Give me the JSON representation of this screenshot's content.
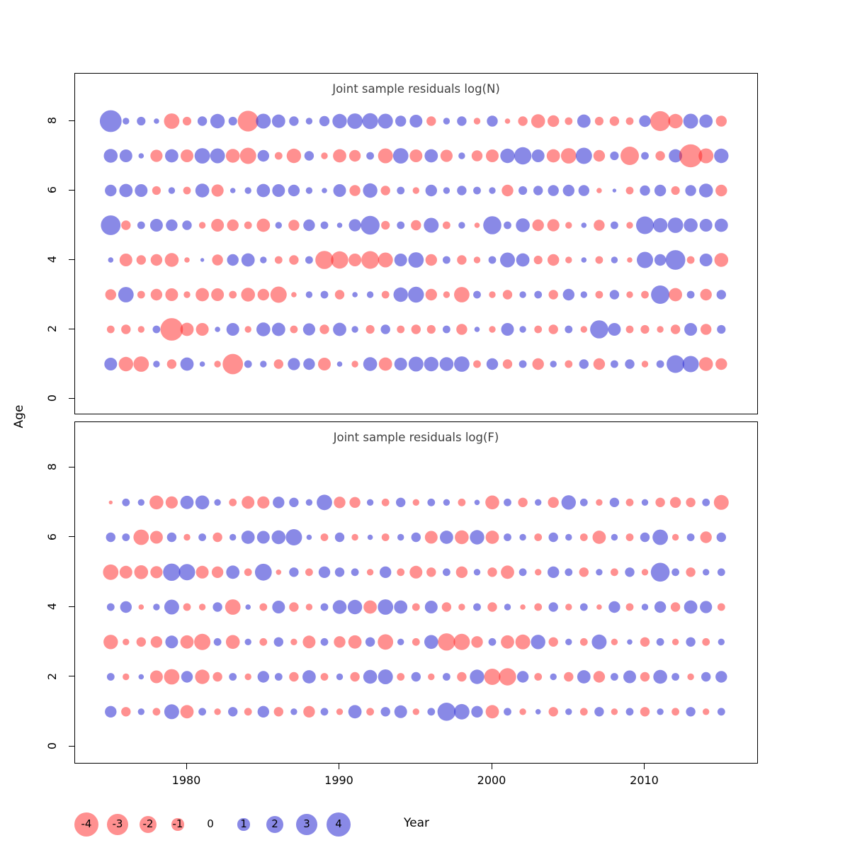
{
  "years": [
    1975,
    1976,
    1977,
    1978,
    1979,
    1980,
    1981,
    1982,
    1983,
    1984,
    1985,
    1986,
    1987,
    1988,
    1989,
    1990,
    1991,
    1992,
    1993,
    1994,
    1995,
    1996,
    1997,
    1998,
    1999,
    2000,
    2001,
    2002,
    2003,
    2004,
    2005,
    2006,
    2007,
    2008,
    2009,
    2010,
    2011,
    2012,
    2013,
    2014,
    2015
  ],
  "axes": {
    "ylabel": "Age",
    "xlabel": "Year",
    "xticks": [
      1980,
      1990,
      2000,
      2010
    ],
    "yticks": [
      0,
      2,
      4,
      6,
      8
    ]
  },
  "style": {
    "negative_color": "#ff2222",
    "negative_opacity": 0.5,
    "positive_color": "#3a3ad6",
    "positive_opacity": 0.6,
    "title_color": "#404040"
  },
  "legend": {
    "values": [
      -4,
      -3,
      -2,
      -1,
      0,
      1,
      2,
      3,
      4
    ]
  },
  "chart_data": [
    {
      "type": "bubble",
      "title": "Joint sample residuals log(N)",
      "x_range": [
        1975,
        2015
      ],
      "ylim": [
        -0.5,
        8.9
      ],
      "note": "bubble area ~ |residual|, red = negative, blue = positive",
      "series": [
        {
          "age": 8,
          "values": [
            3.2,
            0.3,
            0.5,
            0.2,
            -1.6,
            -0.5,
            0.6,
            1.4,
            0.5,
            -2.9,
            1.5,
            1.2,
            0.6,
            0.3,
            0.7,
            1.4,
            1.6,
            1.7,
            1.5,
            0.8,
            1.1,
            -0.6,
            0.3,
            0.6,
            -0.3,
            0.8,
            -0.2,
            -0.6,
            -1.3,
            -0.9,
            -0.4,
            1.2,
            -0.5,
            -0.6,
            -0.4,
            0.9,
            -2.7,
            -1.4,
            1.5,
            1.2,
            -0.8
          ]
        },
        {
          "age": 7,
          "values": [
            1.3,
            1.1,
            0.2,
            -1.0,
            1.2,
            -1.1,
            1.6,
            1.5,
            -1.3,
            -1.8,
            0.9,
            -0.4,
            -1.4,
            0.6,
            -0.3,
            -1.2,
            -0.9,
            0.4,
            -1.5,
            1.6,
            -1.1,
            1.2,
            -1.0,
            0.3,
            -0.8,
            -1.1,
            1.4,
            2.0,
            1.1,
            -1.2,
            -1.6,
            1.8,
            -0.9,
            0.5,
            -2.3,
            0.4,
            -0.6,
            1.2,
            -3.6,
            -1.5,
            1.4
          ]
        },
        {
          "age": 6,
          "values": [
            0.9,
            1.2,
            1.1,
            -0.5,
            0.3,
            -0.4,
            1.3,
            -1.0,
            0.2,
            0.3,
            1.2,
            1.1,
            0.9,
            0.3,
            0.2,
            1.1,
            -0.8,
            1.4,
            -0.6,
            0.4,
            -0.3,
            0.9,
            0.3,
            0.6,
            0.4,
            0.3,
            -0.9,
            0.5,
            0.6,
            0.8,
            0.9,
            0.8,
            -0.2,
            0.1,
            -0.4,
            0.7,
            0.9,
            -0.5,
            0.8,
            1.3,
            -0.9
          ]
        },
        {
          "age": 5,
          "values": [
            2.6,
            -0.6,
            0.4,
            1.1,
            0.9,
            0.6,
            -0.3,
            -1.1,
            -0.9,
            -0.4,
            -1.2,
            0.3,
            -0.8,
            0.9,
            0.4,
            0.2,
            1.0,
            2.4,
            -0.5,
            0.4,
            -0.7,
            1.5,
            -0.4,
            0.3,
            -0.2,
            2.2,
            0.4,
            1.3,
            -0.9,
            -1.0,
            -0.3,
            0.2,
            -0.8,
            0.4,
            -0.3,
            2.1,
            1.4,
            1.6,
            1.3,
            1.1,
            1.2
          ]
        },
        {
          "age": 4,
          "values": [
            0.2,
            -1.1,
            -0.6,
            -0.9,
            -1.3,
            -0.2,
            0.1,
            -0.8,
            0.9,
            1.2,
            0.3,
            -0.4,
            -0.6,
            0.4,
            -2.2,
            -2.0,
            -1.1,
            -2.1,
            -1.5,
            1.1,
            1.6,
            -0.9,
            0.4,
            -0.6,
            -0.3,
            0.4,
            1.5,
            1.2,
            -0.5,
            -0.9,
            -0.3,
            0.2,
            -0.4,
            0.3,
            -0.2,
            1.8,
            0.9,
            2.6,
            -0.4,
            1.1,
            -1.3
          ]
        },
        {
          "age": 3,
          "values": [
            -0.8,
            1.6,
            -0.4,
            -0.9,
            -1.1,
            -0.3,
            -1.2,
            -1.1,
            -0.4,
            -1.3,
            -0.9,
            -1.8,
            -0.2,
            0.3,
            0.4,
            -0.6,
            0.2,
            0.3,
            -0.4,
            1.4,
            1.7,
            -0.9,
            -0.3,
            -1.6,
            0.4,
            -0.3,
            -0.6,
            0.3,
            0.4,
            -0.6,
            0.9,
            0.3,
            -0.4,
            0.6,
            -0.3,
            -0.4,
            2.3,
            -1.2,
            0.4,
            -0.9,
            0.6
          ]
        },
        {
          "age": 2,
          "values": [
            -0.4,
            -0.6,
            -0.3,
            0.4,
            -3.4,
            -1.2,
            -1.1,
            0.2,
            1.1,
            -0.3,
            1.3,
            1.2,
            -0.4,
            1.0,
            -0.6,
            1.2,
            0.3,
            -0.5,
            0.6,
            -0.4,
            -0.6,
            -0.5,
            0.4,
            -0.8,
            0.2,
            -0.3,
            1.1,
            0.3,
            -0.4,
            -0.6,
            0.4,
            -0.3,
            2.2,
            1.1,
            -0.4,
            -0.5,
            -0.3,
            -0.6,
            1.1,
            -0.8,
            0.5
          ]
        },
        {
          "age": 1,
          "values": [
            1.1,
            -1.4,
            -1.6,
            0.3,
            -0.6,
            1.2,
            0.2,
            -0.3,
            -2.8,
            0.4,
            0.3,
            -0.6,
            1.0,
            0.9,
            -1.1,
            0.2,
            -0.3,
            1.3,
            -1.2,
            1.1,
            1.5,
            1.4,
            1.3,
            1.6,
            -0.4,
            0.9,
            -0.6,
            0.4,
            -0.9,
            0.3,
            -0.4,
            0.6,
            -0.9,
            0.4,
            0.6,
            -0.3,
            0.4,
            2.1,
            1.8,
            -1.3,
            -0.9
          ]
        }
      ]
    },
    {
      "type": "bubble",
      "title": "Joint sample residuals log(F)",
      "x_range": [
        1975,
        2015
      ],
      "ylim": [
        -0.5,
        8.9
      ],
      "note": "bubble area ~ |residual|, red = negative, blue = positive",
      "series": [
        {
          "age": 7,
          "values": [
            -0.1,
            0.4,
            0.3,
            -1.3,
            -1.0,
            1.2,
            1.3,
            0.3,
            -0.4,
            -1.1,
            -1.0,
            0.9,
            0.6,
            0.3,
            1.6,
            -0.9,
            -0.8,
            0.3,
            -0.4,
            0.6,
            -0.3,
            0.4,
            0.3,
            -0.4,
            0.2,
            -1.3,
            0.4,
            -0.6,
            0.3,
            -0.8,
            1.4,
            0.4,
            -0.3,
            0.6,
            -0.4,
            0.3,
            -0.6,
            -0.8,
            -0.6,
            0.4,
            -1.5
          ]
        },
        {
          "age": 6,
          "values": [
            0.6,
            0.4,
            -1.6,
            -1.1,
            0.6,
            -0.3,
            0.4,
            -0.6,
            0.3,
            1.2,
            1.1,
            1.3,
            1.8,
            0.2,
            -0.4,
            0.6,
            -0.3,
            0.2,
            -0.4,
            0.3,
            0.6,
            -1.1,
            1.2,
            -1.3,
            1.4,
            -1.2,
            0.4,
            0.3,
            -0.4,
            0.6,
            0.3,
            -0.4,
            -1.2,
            0.3,
            -0.4,
            0.6,
            1.6,
            -0.3,
            0.4,
            -0.9,
            0.6
          ]
        },
        {
          "age": 5,
          "values": [
            -1.6,
            -1.1,
            -1.3,
            -1.0,
            2.0,
            1.8,
            -1.1,
            -0.9,
            1.2,
            -0.4,
            1.9,
            -0.2,
            0.6,
            -0.4,
            0.9,
            0.6,
            0.4,
            -0.3,
            0.9,
            -0.4,
            -1.1,
            -0.6,
            0.4,
            -0.9,
            0.3,
            -0.6,
            -1.2,
            0.4,
            -0.3,
            0.9,
            0.4,
            -0.6,
            0.3,
            -0.4,
            0.6,
            -0.3,
            2.4,
            0.4,
            -0.6,
            0.3,
            0.4
          ]
        },
        {
          "age": 4,
          "values": [
            0.4,
            0.9,
            -0.2,
            0.3,
            1.5,
            -0.4,
            -0.3,
            0.6,
            -1.6,
            0.2,
            -0.4,
            1.1,
            -0.6,
            -0.3,
            0.4,
            1.3,
            1.4,
            -1.2,
            1.6,
            1.2,
            -0.4,
            1.1,
            -0.6,
            -0.3,
            0.4,
            -0.6,
            0.3,
            -0.2,
            -0.4,
            0.6,
            -0.3,
            0.4,
            -0.2,
            0.9,
            -0.4,
            0.3,
            0.9,
            -0.6,
            1.2,
            1.0,
            -0.4
          ]
        },
        {
          "age": 3,
          "values": [
            -1.4,
            -0.3,
            -0.6,
            -0.9,
            1.1,
            -1.2,
            -1.8,
            0.4,
            -1.3,
            0.3,
            -0.4,
            0.6,
            -0.3,
            -1.1,
            0.4,
            -0.9,
            -1.2,
            0.6,
            -1.6,
            0.3,
            -0.4,
            1.3,
            -2.0,
            -1.8,
            -0.9,
            0.4,
            -1.2,
            -1.5,
            1.4,
            -0.6,
            0.3,
            -0.4,
            1.5,
            -0.3,
            0.2,
            -0.6,
            0.4,
            -0.3,
            0.6,
            -0.4,
            0.3
          ]
        },
        {
          "age": 2,
          "values": [
            0.4,
            -0.3,
            0.2,
            -1.1,
            -1.6,
            0.9,
            -1.4,
            -0.6,
            0.4,
            -0.3,
            0.9,
            0.4,
            -0.6,
            1.2,
            -0.4,
            0.3,
            -0.6,
            1.3,
            1.5,
            -0.4,
            0.6,
            -0.3,
            0.4,
            -0.6,
            1.4,
            -1.8,
            -2.0,
            0.9,
            -0.4,
            0.3,
            -0.6,
            1.2,
            -0.9,
            0.4,
            1.1,
            -0.6,
            1.3,
            0.4,
            -0.3,
            0.6,
            0.9
          ]
        },
        {
          "age": 1,
          "values": [
            0.9,
            -0.6,
            0.3,
            -0.4,
            1.5,
            -1.2,
            0.4,
            -0.3,
            0.6,
            -0.4,
            0.9,
            -0.6,
            0.3,
            -0.9,
            0.4,
            -0.3,
            1.2,
            -0.4,
            0.6,
            1.1,
            -0.3,
            0.4,
            2.2,
            1.6,
            0.9,
            -1.2,
            0.4,
            -0.3,
            0.2,
            -0.6,
            0.3,
            -0.4,
            0.6,
            -0.3,
            0.4,
            -0.6,
            0.3,
            -0.4,
            0.6,
            -0.3,
            0.4
          ]
        }
      ]
    }
  ]
}
